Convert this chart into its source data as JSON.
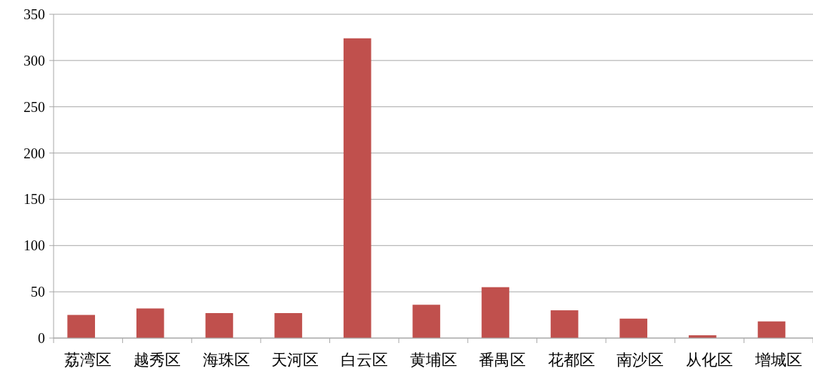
{
  "chart_data": {
    "type": "bar",
    "categories": [
      "荔湾区",
      "越秀区",
      "海珠区",
      "天河区",
      "白云区",
      "黄埔区",
      "番禺区",
      "花都区",
      "南沙区",
      "从化区",
      "增城区"
    ],
    "values": [
      25,
      32,
      27,
      27,
      324,
      36,
      55,
      30,
      21,
      3,
      18
    ],
    "color": "#c0504d",
    "ylim": [
      0,
      350
    ],
    "yticks": [
      0,
      50,
      100,
      150,
      200,
      250,
      300,
      350
    ],
    "grid": "y"
  }
}
